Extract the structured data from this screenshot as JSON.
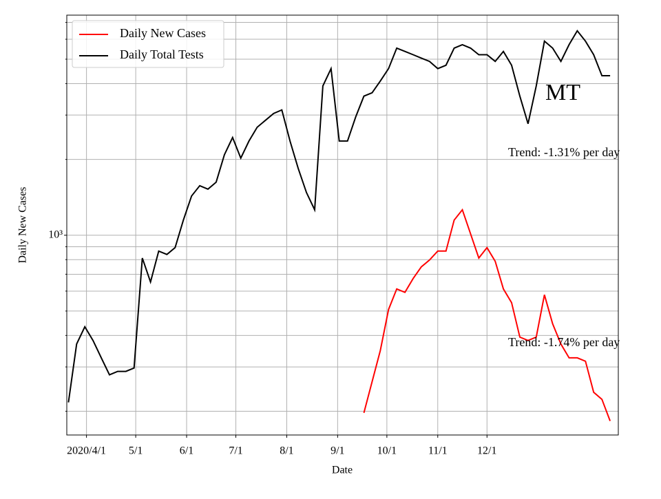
{
  "chart_data": {
    "type": "line",
    "xlabel": "Date",
    "ylabel": "Daily New Cases",
    "annotations": [
      "MT",
      "Trend: -1.31% per day",
      "Trend: -1.74% per day"
    ],
    "x": [
      "2020-03-21",
      "2020-03-26",
      "2020-03-31",
      "2020-04-05",
      "2020-04-10",
      "2020-04-15",
      "2020-04-20",
      "2020-04-25",
      "2020-04-30",
      "2020-05-05",
      "2020-05-10",
      "2020-05-15",
      "2020-05-20",
      "2020-05-25",
      "2020-05-30",
      "2020-06-04",
      "2020-06-09",
      "2020-06-14",
      "2020-06-19",
      "2020-06-24",
      "2020-06-29",
      "2020-07-04",
      "2020-07-09",
      "2020-07-14",
      "2020-07-19",
      "2020-07-24",
      "2020-07-29",
      "2020-08-03",
      "2020-08-08",
      "2020-08-13",
      "2020-08-18",
      "2020-08-23",
      "2020-08-28",
      "2020-09-02",
      "2020-09-07",
      "2020-09-12",
      "2020-09-17",
      "2020-09-22",
      "2020-09-27",
      "2020-10-02",
      "2020-10-07",
      "2020-10-12",
      "2020-10-17",
      "2020-10-22",
      "2020-10-27",
      "2020-11-01",
      "2020-11-06",
      "2020-11-11",
      "2020-11-16",
      "2020-11-21",
      "2020-11-26",
      "2020-12-01",
      "2020-12-06",
      "2020-12-11",
      "2020-12-16",
      "2020-12-21",
      "2020-12-26",
      "2020-12-31",
      "2021-01-05",
      "2021-01-10",
      "2021-01-15",
      "2021-01-20",
      "2021-01-25",
      "2021-01-30",
      "2021-02-04",
      "2021-02-09",
      "2021-02-14"
    ],
    "series": [
      {
        "name": "Daily New Cases",
        "color": "#ff0000",
        "values": [
          null,
          null,
          null,
          null,
          null,
          null,
          null,
          null,
          null,
          null,
          null,
          null,
          null,
          null,
          null,
          null,
          null,
          null,
          null,
          null,
          null,
          null,
          null,
          null,
          null,
          null,
          null,
          null,
          null,
          null,
          null,
          null,
          null,
          null,
          null,
          null,
          197,
          262,
          348,
          507,
          612,
          593,
          673,
          749,
          797,
          865,
          865,
          1148,
          1262,
          1013,
          812,
          893,
          788,
          612,
          540,
          394,
          382,
          394,
          580,
          445,
          370,
          326,
          326,
          316,
          238,
          223,
          183
        ]
      },
      {
        "name": "Daily Total Tests",
        "color": "#000000",
        "values": [
          217,
          370,
          433,
          382,
          326,
          279,
          288,
          288,
          297,
          812,
          652,
          865,
          839,
          893,
          1148,
          1431,
          1573,
          1524,
          1624,
          2088,
          2443,
          2024,
          2366,
          2684,
          2860,
          3046,
          3144,
          2366,
          1842,
          1477,
          1262,
          3914,
          4587,
          2366,
          2366,
          2950,
          3566,
          3677,
          4094,
          4587,
          5535,
          5370,
          5210,
          5050,
          4900,
          4587,
          4730,
          5535,
          5710,
          5535,
          5210,
          5210,
          4900,
          5370,
          4730,
          3566,
          2771,
          3914,
          5895,
          5535,
          4900,
          5710,
          6480,
          5895,
          5210,
          4300,
          4300
        ]
      }
    ],
    "xlim": [
      "2020-03-20",
      "2021-02-19"
    ],
    "xticks": [
      {
        "value": "2020-04-01",
        "label": "2020/4/1"
      },
      {
        "value": "2020-05-01",
        "label": "5/1"
      },
      {
        "value": "2020-06-01",
        "label": "6/1"
      },
      {
        "value": "2020-07-01",
        "label": "7/1"
      },
      {
        "value": "2020-08-01",
        "label": "8/1"
      },
      {
        "value": "2020-09-01",
        "label": "9/1"
      },
      {
        "value": "2020-10-01",
        "label": "10/1"
      },
      {
        "value": "2020-11-01",
        "label": "11/1"
      },
      {
        "value": "2020-12-01",
        "label": "12/1"
      }
    ],
    "ylim": [
      161,
      7480
    ],
    "log_y": true,
    "yticks": [
      {
        "value": 1000,
        "label": "10³"
      }
    ],
    "yminorticks": [
      200,
      300,
      400,
      500,
      600,
      700,
      800,
      900,
      2000,
      3000,
      4000,
      5000,
      6000,
      7000
    ],
    "grid": true,
    "legend": "upper left"
  }
}
